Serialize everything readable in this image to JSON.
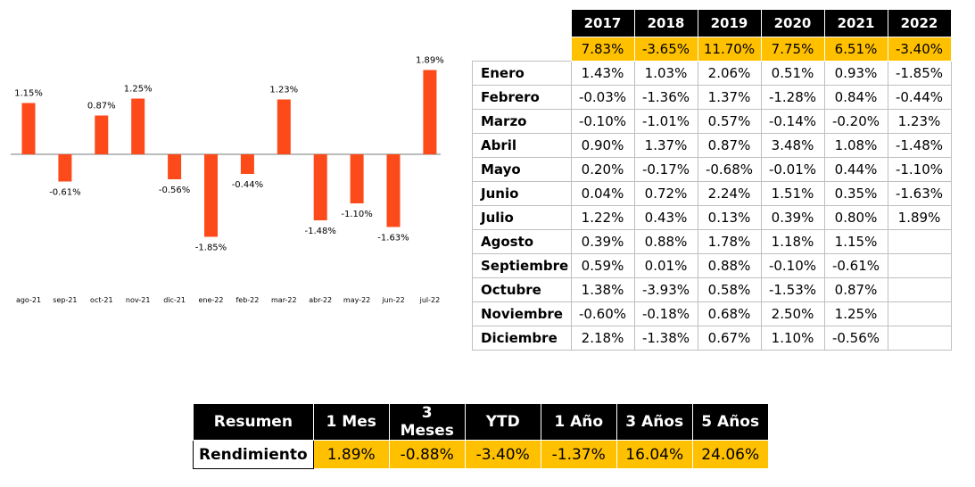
{
  "chart_data": {
    "type": "bar",
    "categories": [
      "ago-21",
      "sep-21",
      "oct-21",
      "nov-21",
      "dic-21",
      "ene-22",
      "feb-22",
      "mar-22",
      "abr-22",
      "may-22",
      "jun-22",
      "jul-22"
    ],
    "values": [
      1.15,
      -0.61,
      0.87,
      1.25,
      -0.56,
      -1.85,
      -0.44,
      1.23,
      -1.48,
      -1.1,
      -1.63,
      1.89
    ],
    "value_labels": [
      "1.15%",
      "-0.61%",
      "0.87%",
      "1.25%",
      "-0.56%",
      "-1.85%",
      "-0.44%",
      "1.23%",
      "-1.48%",
      "-1.10%",
      "-1.63%",
      "1.89%"
    ],
    "color": "#fc4a1a",
    "title": "",
    "xlabel": "",
    "ylabel": "",
    "grid": false
  },
  "monthly_table": {
    "years": [
      "2017",
      "2018",
      "2019",
      "2020",
      "2021",
      "2022"
    ],
    "annual": [
      "7.83%",
      "-3.65%",
      "11.70%",
      "7.75%",
      "6.51%",
      "-3.40%"
    ],
    "rows": [
      {
        "month": "Enero",
        "values": [
          "1.43%",
          "1.03%",
          "2.06%",
          "0.51%",
          "0.93%",
          "-1.85%"
        ]
      },
      {
        "month": "Febrero",
        "values": [
          "-0.03%",
          "-1.36%",
          "1.37%",
          "-1.28%",
          "0.84%",
          "-0.44%"
        ]
      },
      {
        "month": "Marzo",
        "values": [
          "-0.10%",
          "-1.01%",
          "0.57%",
          "-0.14%",
          "-0.20%",
          "1.23%"
        ]
      },
      {
        "month": "Abril",
        "values": [
          "0.90%",
          "1.37%",
          "0.87%",
          "3.48%",
          "1.08%",
          "-1.48%"
        ]
      },
      {
        "month": "Mayo",
        "values": [
          "0.20%",
          "-0.17%",
          "-0.68%",
          "-0.01%",
          "0.44%",
          "-1.10%"
        ]
      },
      {
        "month": "Junio",
        "values": [
          "0.04%",
          "0.72%",
          "2.24%",
          "1.51%",
          "0.35%",
          "-1.63%"
        ]
      },
      {
        "month": "Julio",
        "values": [
          "1.22%",
          "0.43%",
          "0.13%",
          "0.39%",
          "0.80%",
          "1.89%"
        ]
      },
      {
        "month": "Agosto",
        "values": [
          "0.39%",
          "0.88%",
          "1.78%",
          "1.18%",
          "1.15%",
          ""
        ]
      },
      {
        "month": "Septiembre",
        "values": [
          "0.59%",
          "0.01%",
          "0.88%",
          "-0.10%",
          "-0.61%",
          ""
        ]
      },
      {
        "month": "Octubre",
        "values": [
          "1.38%",
          "-3.93%",
          "0.58%",
          "-1.53%",
          "0.87%",
          ""
        ]
      },
      {
        "month": "Noviembre",
        "values": [
          "-0.60%",
          "-0.18%",
          "0.68%",
          "2.50%",
          "1.25%",
          ""
        ]
      },
      {
        "month": "Diciembre",
        "values": [
          "2.18%",
          "-1.38%",
          "0.67%",
          "1.10%",
          "-0.56%",
          ""
        ]
      }
    ]
  },
  "summary_table": {
    "headers": [
      "Resumen",
      "1 Mes",
      "3 Meses",
      "YTD",
      "1 Año",
      "3 Años",
      "5 Años"
    ],
    "row_label": "Rendimiento",
    "values": [
      "1.89%",
      "-0.88%",
      "-3.40%",
      "-1.37%",
      "16.04%",
      "24.06%"
    ]
  },
  "colors": {
    "header_bg": "#000000",
    "highlight": "#ffc000",
    "bar": "#fc4a1a"
  }
}
